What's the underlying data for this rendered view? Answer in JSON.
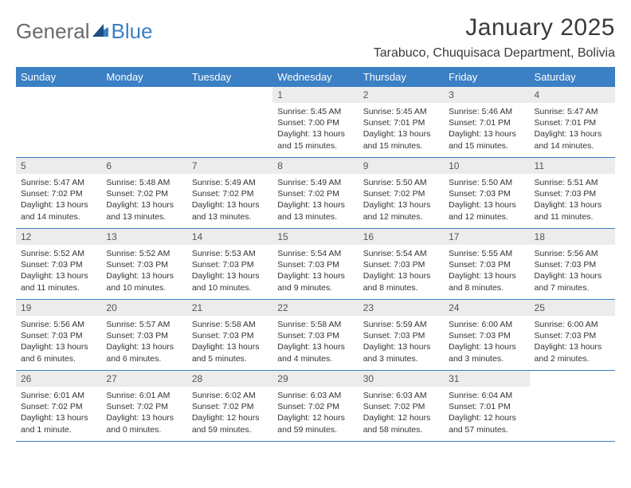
{
  "logo": {
    "text1": "General",
    "text2": "Blue"
  },
  "title": "January 2025",
  "location": "Tarabuco, Chuquisaca Department, Bolivia",
  "weekdays": [
    "Sunday",
    "Monday",
    "Tuesday",
    "Wednesday",
    "Thursday",
    "Friday",
    "Saturday"
  ],
  "colors": {
    "header_bg": "#3b7fc4",
    "header_text": "#ffffff",
    "daynum_bg": "#ececec",
    "border": "#3b7fc4",
    "body_text": "#333333",
    "title_text": "#3a3a3a",
    "logo_gray": "#6a6a6a",
    "logo_blue": "#3b7fc4"
  },
  "weeks": [
    [
      null,
      null,
      null,
      {
        "n": "1",
        "sr": "5:45 AM",
        "ss": "7:00 PM",
        "dl": "13 hours and 15 minutes."
      },
      {
        "n": "2",
        "sr": "5:45 AM",
        "ss": "7:01 PM",
        "dl": "13 hours and 15 minutes."
      },
      {
        "n": "3",
        "sr": "5:46 AM",
        "ss": "7:01 PM",
        "dl": "13 hours and 15 minutes."
      },
      {
        "n": "4",
        "sr": "5:47 AM",
        "ss": "7:01 PM",
        "dl": "13 hours and 14 minutes."
      }
    ],
    [
      {
        "n": "5",
        "sr": "5:47 AM",
        "ss": "7:02 PM",
        "dl": "13 hours and 14 minutes."
      },
      {
        "n": "6",
        "sr": "5:48 AM",
        "ss": "7:02 PM",
        "dl": "13 hours and 13 minutes."
      },
      {
        "n": "7",
        "sr": "5:49 AM",
        "ss": "7:02 PM",
        "dl": "13 hours and 13 minutes."
      },
      {
        "n": "8",
        "sr": "5:49 AM",
        "ss": "7:02 PM",
        "dl": "13 hours and 13 minutes."
      },
      {
        "n": "9",
        "sr": "5:50 AM",
        "ss": "7:02 PM",
        "dl": "13 hours and 12 minutes."
      },
      {
        "n": "10",
        "sr": "5:50 AM",
        "ss": "7:03 PM",
        "dl": "13 hours and 12 minutes."
      },
      {
        "n": "11",
        "sr": "5:51 AM",
        "ss": "7:03 PM",
        "dl": "13 hours and 11 minutes."
      }
    ],
    [
      {
        "n": "12",
        "sr": "5:52 AM",
        "ss": "7:03 PM",
        "dl": "13 hours and 11 minutes."
      },
      {
        "n": "13",
        "sr": "5:52 AM",
        "ss": "7:03 PM",
        "dl": "13 hours and 10 minutes."
      },
      {
        "n": "14",
        "sr": "5:53 AM",
        "ss": "7:03 PM",
        "dl": "13 hours and 10 minutes."
      },
      {
        "n": "15",
        "sr": "5:54 AM",
        "ss": "7:03 PM",
        "dl": "13 hours and 9 minutes."
      },
      {
        "n": "16",
        "sr": "5:54 AM",
        "ss": "7:03 PM",
        "dl": "13 hours and 8 minutes."
      },
      {
        "n": "17",
        "sr": "5:55 AM",
        "ss": "7:03 PM",
        "dl": "13 hours and 8 minutes."
      },
      {
        "n": "18",
        "sr": "5:56 AM",
        "ss": "7:03 PM",
        "dl": "13 hours and 7 minutes."
      }
    ],
    [
      {
        "n": "19",
        "sr": "5:56 AM",
        "ss": "7:03 PM",
        "dl": "13 hours and 6 minutes."
      },
      {
        "n": "20",
        "sr": "5:57 AM",
        "ss": "7:03 PM",
        "dl": "13 hours and 6 minutes."
      },
      {
        "n": "21",
        "sr": "5:58 AM",
        "ss": "7:03 PM",
        "dl": "13 hours and 5 minutes."
      },
      {
        "n": "22",
        "sr": "5:58 AM",
        "ss": "7:03 PM",
        "dl": "13 hours and 4 minutes."
      },
      {
        "n": "23",
        "sr": "5:59 AM",
        "ss": "7:03 PM",
        "dl": "13 hours and 3 minutes."
      },
      {
        "n": "24",
        "sr": "6:00 AM",
        "ss": "7:03 PM",
        "dl": "13 hours and 3 minutes."
      },
      {
        "n": "25",
        "sr": "6:00 AM",
        "ss": "7:03 PM",
        "dl": "13 hours and 2 minutes."
      }
    ],
    [
      {
        "n": "26",
        "sr": "6:01 AM",
        "ss": "7:02 PM",
        "dl": "13 hours and 1 minute."
      },
      {
        "n": "27",
        "sr": "6:01 AM",
        "ss": "7:02 PM",
        "dl": "13 hours and 0 minutes."
      },
      {
        "n": "28",
        "sr": "6:02 AM",
        "ss": "7:02 PM",
        "dl": "12 hours and 59 minutes."
      },
      {
        "n": "29",
        "sr": "6:03 AM",
        "ss": "7:02 PM",
        "dl": "12 hours and 59 minutes."
      },
      {
        "n": "30",
        "sr": "6:03 AM",
        "ss": "7:02 PM",
        "dl": "12 hours and 58 minutes."
      },
      {
        "n": "31",
        "sr": "6:04 AM",
        "ss": "7:01 PM",
        "dl": "12 hours and 57 minutes."
      },
      null
    ]
  ],
  "labels": {
    "sunrise": "Sunrise:",
    "sunset": "Sunset:",
    "daylight": "Daylight:"
  }
}
